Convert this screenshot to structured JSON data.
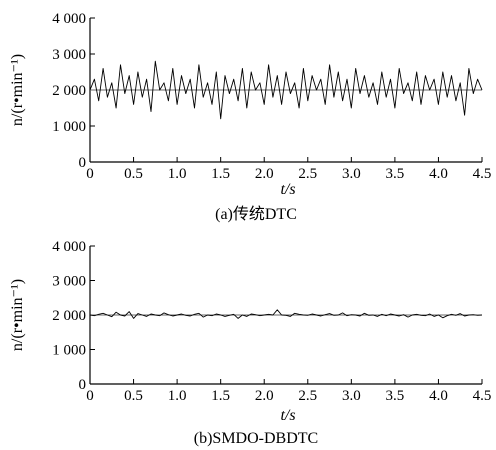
{
  "colors": {
    "axis": "#000000",
    "series": "#000000",
    "reference": "#666666"
  },
  "chart_data": [
    {
      "type": "line",
      "caption": "(a)传统DTC",
      "xlabel": "t/s",
      "ylabel": "n/(r•min⁻¹)",
      "xlim": [
        0,
        4.5
      ],
      "ylim": [
        0,
        4000
      ],
      "xticks": [
        0,
        0.5,
        1.0,
        1.5,
        2.0,
        2.5,
        3.0,
        3.5,
        4.0,
        4.5
      ],
      "xtick_labels": [
        "0",
        "0.5",
        "1.0",
        "1.5",
        "2.0",
        "2.5",
        "3.0",
        "3.5",
        "4.0",
        "4.5"
      ],
      "yticks": [
        0,
        1000,
        2000,
        3000,
        4000
      ],
      "ytick_labels": [
        "0",
        "1 000",
        "2 000",
        "3 000",
        "4 000"
      ],
      "grid": false,
      "series": [
        {
          "role": "reference",
          "x": [
            0,
            4.5
          ],
          "y": [
            2000,
            2000
          ]
        },
        {
          "role": "speed",
          "x": [
            0.0,
            0.05,
            0.1,
            0.15,
            0.2,
            0.25,
            0.3,
            0.35,
            0.4,
            0.45,
            0.5,
            0.55,
            0.6,
            0.65,
            0.7,
            0.75,
            0.8,
            0.85,
            0.9,
            0.95,
            1.0,
            1.05,
            1.1,
            1.15,
            1.2,
            1.25,
            1.3,
            1.35,
            1.4,
            1.45,
            1.5,
            1.55,
            1.6,
            1.65,
            1.7,
            1.75,
            1.8,
            1.85,
            1.9,
            1.95,
            2.0,
            2.05,
            2.1,
            2.15,
            2.2,
            2.25,
            2.3,
            2.35,
            2.4,
            2.45,
            2.5,
            2.55,
            2.6,
            2.65,
            2.7,
            2.75,
            2.8,
            2.85,
            2.9,
            2.95,
            3.0,
            3.05,
            3.1,
            3.15,
            3.2,
            3.25,
            3.3,
            3.35,
            3.4,
            3.45,
            3.5,
            3.55,
            3.6,
            3.65,
            3.7,
            3.75,
            3.8,
            3.85,
            3.9,
            3.95,
            4.0,
            4.05,
            4.1,
            4.15,
            4.2,
            4.25,
            4.3,
            4.35,
            4.4,
            4.45,
            4.5
          ],
          "y": [
            2000,
            2300,
            1700,
            2600,
            1800,
            2200,
            1500,
            2700,
            1900,
            2400,
            1600,
            2500,
            1800,
            2300,
            1400,
            2800,
            2000,
            2200,
            1700,
            2600,
            1600,
            2400,
            1900,
            2300,
            1500,
            2700,
            1800,
            2200,
            1600,
            2500,
            1200,
            2400,
            1900,
            2300,
            1700,
            2600,
            1500,
            2500,
            2000,
            2200,
            1600,
            2700,
            1800,
            2400,
            1600,
            2500,
            1900,
            2200,
            1500,
            2600,
            1700,
            2400,
            2000,
            2300,
            1600,
            2700,
            1800,
            2500,
            1700,
            2300,
            1500,
            2600,
            1900,
            2400,
            1800,
            2200,
            1600,
            2500,
            1800,
            2300,
            1500,
            2600,
            1900,
            2200,
            1700,
            2500,
            1600,
            2400,
            2000,
            2300,
            1600,
            2500,
            1800,
            2400,
            1700,
            2200,
            1300,
            2600,
            1900,
            2300,
            2000
          ]
        }
      ]
    },
    {
      "type": "line",
      "caption": "(b)SMDO-DBDTC",
      "xlabel": "t/s",
      "ylabel": "n/(r•min⁻¹)",
      "xlim": [
        0,
        4.5
      ],
      "ylim": [
        0,
        4000
      ],
      "xticks": [
        0,
        0.5,
        1.0,
        1.5,
        2.0,
        2.5,
        3.0,
        3.5,
        4.0,
        4.5
      ],
      "xtick_labels": [
        "0",
        "0.5",
        "1.0",
        "1.5",
        "2.0",
        "2.5",
        "3.0",
        "3.5",
        "4.0",
        "4.5"
      ],
      "yticks": [
        0,
        1000,
        2000,
        3000,
        4000
      ],
      "ytick_labels": [
        "0",
        "1 000",
        "2 000",
        "3 000",
        "4 000"
      ],
      "grid": false,
      "series": [
        {
          "role": "reference",
          "x": [
            0,
            4.5
          ],
          "y": [
            2000,
            2000
          ]
        },
        {
          "role": "speed",
          "x": [
            0.0,
            0.05,
            0.1,
            0.15,
            0.2,
            0.25,
            0.3,
            0.35,
            0.4,
            0.45,
            0.5,
            0.55,
            0.6,
            0.65,
            0.7,
            0.75,
            0.8,
            0.85,
            0.9,
            0.95,
            1.0,
            1.05,
            1.1,
            1.15,
            1.2,
            1.25,
            1.3,
            1.35,
            1.4,
            1.45,
            1.5,
            1.55,
            1.6,
            1.65,
            1.7,
            1.75,
            1.8,
            1.85,
            1.9,
            1.95,
            2.0,
            2.05,
            2.1,
            2.15,
            2.2,
            2.25,
            2.3,
            2.35,
            2.4,
            2.45,
            2.5,
            2.55,
            2.6,
            2.65,
            2.7,
            2.75,
            2.8,
            2.85,
            2.9,
            2.95,
            3.0,
            3.05,
            3.1,
            3.15,
            3.2,
            3.25,
            3.3,
            3.35,
            3.4,
            3.45,
            3.5,
            3.55,
            3.6,
            3.65,
            3.7,
            3.75,
            3.8,
            3.85,
            3.9,
            3.95,
            4.0,
            4.05,
            4.1,
            4.15,
            4.2,
            4.25,
            4.3,
            4.35,
            4.4,
            4.45,
            4.5
          ],
          "y": [
            2000,
            1980,
            2020,
            2050,
            2000,
            1950,
            2080,
            2000,
            1970,
            2100,
            1900,
            2040,
            2000,
            1960,
            2030,
            2000,
            1980,
            2060,
            2010,
            1970,
            2000,
            2030,
            1990,
            1970,
            2020,
            2050,
            1940,
            2000,
            1980,
            2030,
            2000,
            1960,
            1990,
            2020,
            1900,
            2000,
            1960,
            2030,
            2010,
            1980,
            2000,
            2020,
            2000,
            2150,
            2000,
            1990,
            1960,
            2050,
            2020,
            2000,
            1990,
            2030,
            2000,
            1970,
            2010,
            2040,
            1990,
            2000,
            2060,
            1980,
            2010,
            2000,
            1970,
            2050,
            1990,
            2000,
            1960,
            2020,
            1980,
            2030,
            2000,
            1970,
            2010,
            1940,
            2000,
            2020,
            1990,
            1980,
            2030,
            1960,
            2000,
            1920,
            1980,
            2020,
            1990,
            2040,
            1970,
            2000,
            2010,
            1990,
            2000
          ]
        }
      ]
    }
  ]
}
